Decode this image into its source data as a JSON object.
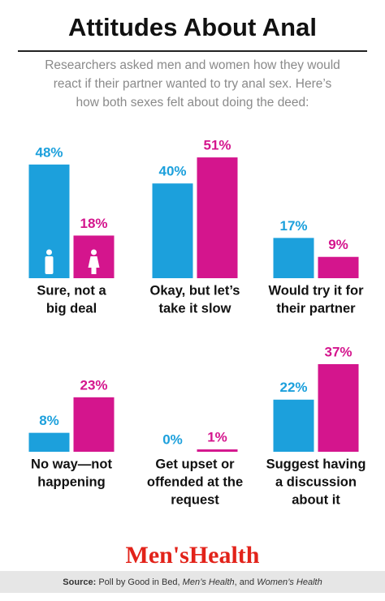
{
  "title": "Attitudes About Anal",
  "subtitle": [
    "Researchers asked men and women how they would",
    "react if their partner wanted to try anal sex. Here’s",
    "how both sexes felt about doing the deed:"
  ],
  "logo": "Men'sHealth",
  "source": {
    "label": "Source:",
    "parts": [
      " Poll by Good in Bed, ",
      "Men’s Health",
      ", and ",
      "Women’s Health"
    ]
  },
  "chart_data": [
    {
      "type": "bar",
      "label": [
        "Sure, not a",
        "big deal"
      ],
      "values": [
        48,
        18
      ],
      "value_labels": [
        "48%",
        "18%"
      ],
      "colors": [
        "#1ca0dc",
        "#d4158d"
      ],
      "ylim": [
        0,
        100
      ]
    },
    {
      "type": "bar",
      "label": [
        "Okay, but let’s",
        "take it slow"
      ],
      "values": [
        40,
        51
      ],
      "value_labels": [
        "40%",
        "51%"
      ],
      "colors": [
        "#1ca0dc",
        "#d4158d"
      ],
      "ylim": [
        0,
        100
      ]
    },
    {
      "type": "bar",
      "label": [
        "Would try it for",
        "their partner"
      ],
      "values": [
        17,
        9
      ],
      "value_labels": [
        "17%",
        "9%"
      ],
      "colors": [
        "#1ca0dc",
        "#d4158d"
      ],
      "ylim": [
        0,
        100
      ]
    },
    {
      "type": "bar",
      "label": [
        "No way—not",
        "happening"
      ],
      "values": [
        8,
        23
      ],
      "value_labels": [
        "8%",
        "23%"
      ],
      "colors": [
        "#1ca0dc",
        "#d4158d"
      ],
      "ylim": [
        0,
        100
      ]
    },
    {
      "type": "bar",
      "label": [
        "Get upset or",
        "offended at the",
        "request"
      ],
      "values": [
        0,
        1
      ],
      "value_labels": [
        "0%",
        "1%"
      ],
      "colors": [
        "#1ca0dc",
        "#d4158d"
      ],
      "ylim": [
        0,
        100
      ]
    },
    {
      "type": "bar",
      "label": [
        "Suggest having",
        "a discussion",
        "about it"
      ],
      "values": [
        22,
        37
      ],
      "value_labels": [
        "22%",
        "37%"
      ],
      "colors": [
        "#1ca0dc",
        "#d4158d"
      ],
      "ylim": [
        0,
        100
      ]
    }
  ]
}
